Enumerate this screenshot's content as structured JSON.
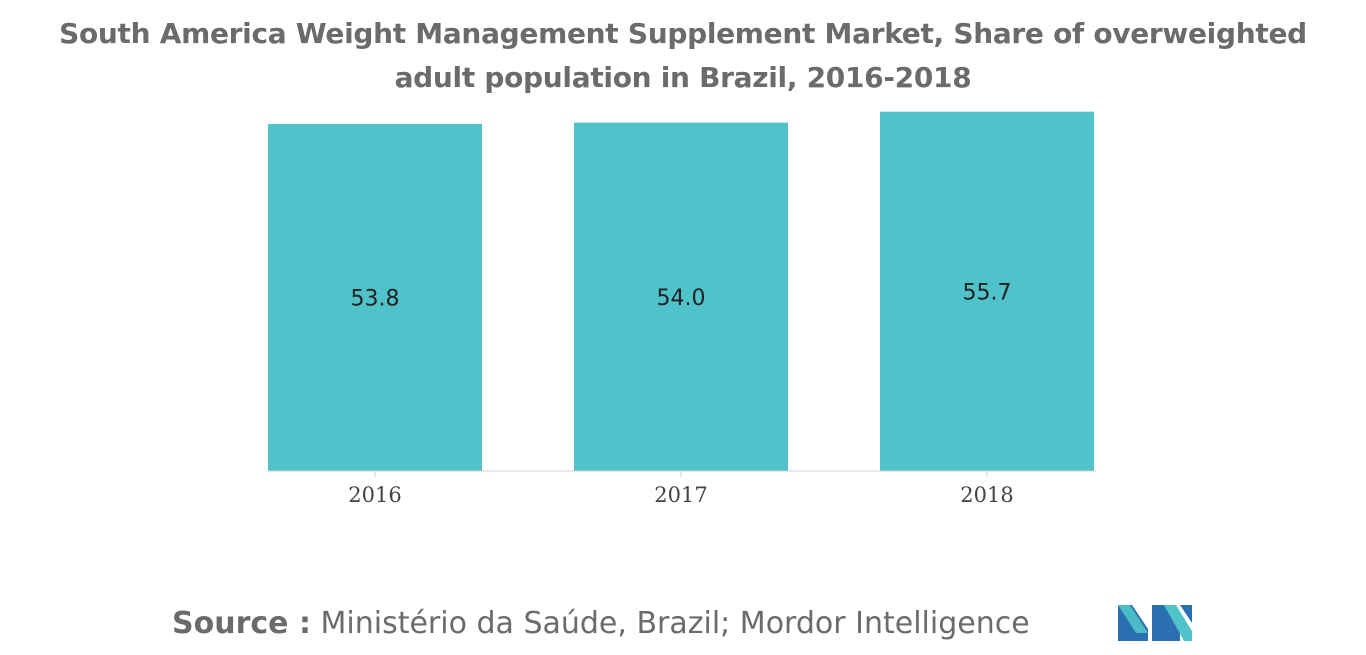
{
  "chart_data": {
    "type": "bar",
    "title": "South America Weight Management Supplement Market, Share of overweighted adult population in Brazil, 2016-2018",
    "categories": [
      "2016",
      "2017",
      "2018"
    ],
    "values": [
      53.8,
      54.0,
      55.7
    ],
    "data_labels": [
      "53.8",
      "54.0",
      "55.7"
    ],
    "bar_color": "#4fc3c9",
    "ylim": [
      0,
      62
    ],
    "grid": false,
    "legend": "none"
  },
  "source": {
    "label": "Source :",
    "text": "Ministério da Saúde, Brazil; Mordor Intelligence"
  },
  "logo": {
    "icon": "mordor-intelligence-logo",
    "colors": [
      "#2a6fb0",
      "#4fc3c9"
    ]
  }
}
